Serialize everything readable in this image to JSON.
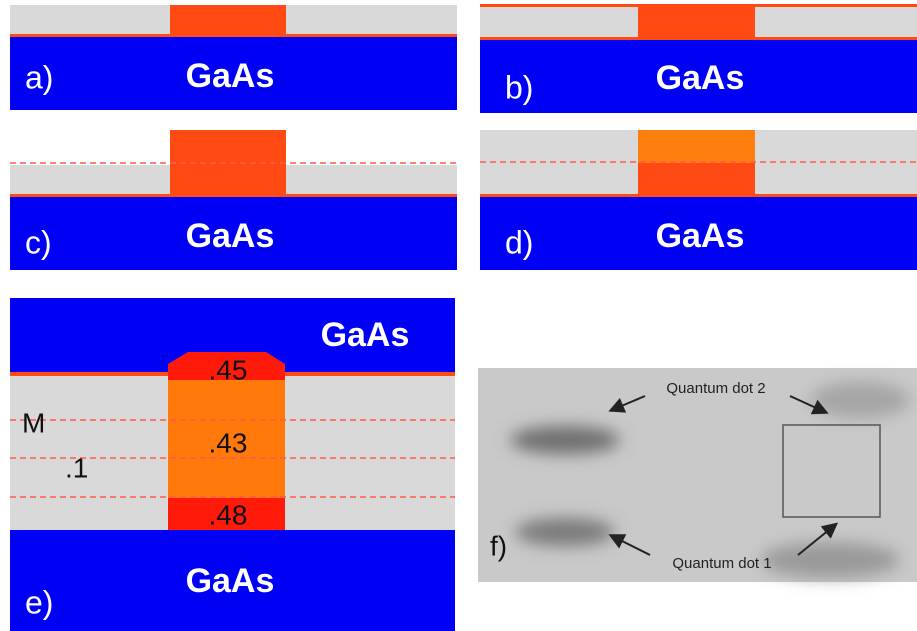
{
  "panels": [
    {
      "label": "a)",
      "substrate": "GaAs"
    },
    {
      "label": "b)",
      "substrate": "GaAs"
    },
    {
      "label": "c)",
      "substrate": "GaAs"
    },
    {
      "label": "d)",
      "substrate": "GaAs"
    },
    {
      "label": "e)",
      "top": "GaAs",
      "substrate": "GaAs",
      "layer_label": "M",
      "layer_value": ".1",
      "dot_values": [
        ".45",
        ".43",
        ".48"
      ]
    },
    {
      "label": "f)",
      "annotations": [
        "Quantum dot 2",
        "Quantum dot 1"
      ]
    }
  ]
}
